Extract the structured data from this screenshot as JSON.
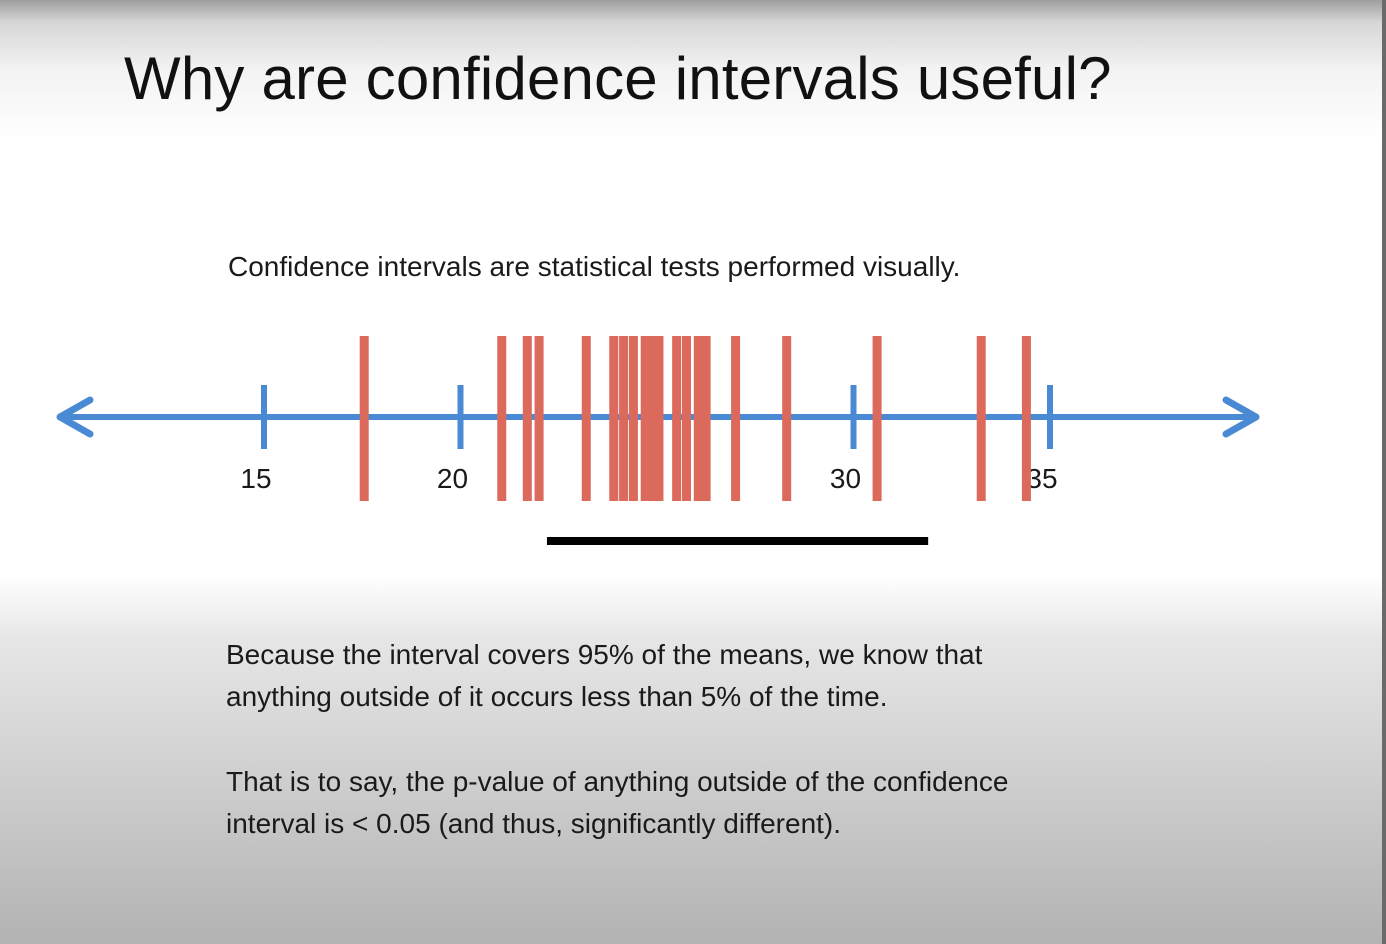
{
  "slide": {
    "title": "Why are confidence intervals useful?",
    "intro": "Confidence intervals are statistical tests performed visually.",
    "paragraph1": {
      "line1": "Because the interval covers 95% of the means, we know that",
      "line2": "anything outside of it occurs less than 5% of the time."
    },
    "paragraph2": {
      "line1": "That is to say, the p-value of anything outside of the confidence",
      "line2": "interval is < 0.05 (and thus, significantly different)."
    }
  },
  "chart_data": {
    "type": "number-line",
    "ticks": [
      {
        "value": 15,
        "label": "15"
      },
      {
        "value": 20,
        "label": "20"
      },
      {
        "value": 25,
        "label": ""
      },
      {
        "value": 30,
        "label": "30"
      },
      {
        "value": 35,
        "label": "35"
      }
    ],
    "sample_means": [
      17.55,
      21.05,
      21.7,
      22.0,
      23.2,
      23.9,
      24.15,
      24.4,
      24.7,
      24.9,
      25.05,
      25.5,
      25.75,
      26.05,
      26.25,
      27.0,
      28.3,
      30.6,
      33.25,
      34.4
    ],
    "confidence_interval": [
      22.2,
      31.9
    ],
    "colors": {
      "axis": "#4a8ad4",
      "means": "#db6a5c",
      "interval": "#000000"
    }
  }
}
